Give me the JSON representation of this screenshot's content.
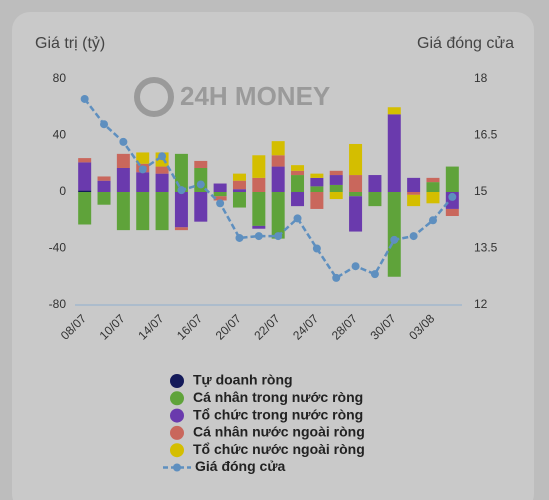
{
  "chart_data": {
    "type": "bar",
    "y_label": "Giá trị (tỷ)",
    "y2_label": "Giá đóng cửa",
    "watermark": "24H MONEY",
    "categories": [
      "08/07",
      null,
      "10/07",
      null,
      "14/07",
      null,
      "16/07",
      null,
      "20/07",
      null,
      "22/07",
      null,
      "24/07",
      null,
      "28/07",
      null,
      "30/07",
      null,
      "03/08",
      null
    ],
    "ylim": [
      -80,
      80
    ],
    "yticks": [
      80,
      40,
      0,
      -40,
      -80
    ],
    "y2lim": [
      12,
      18
    ],
    "y2ticks": [
      18,
      16.5,
      15,
      13.5,
      12
    ],
    "series": [
      {
        "name": "Tự doanh ròng",
        "color": "#141a5a",
        "values": [
          1,
          0,
          0,
          0,
          0,
          0,
          0,
          0,
          0,
          0,
          0,
          0,
          0,
          0,
          0,
          0,
          0,
          0,
          0,
          0
        ]
      },
      {
        "name": "Cá nhân trong nước ròng",
        "color": "#5fa33a",
        "values": [
          -23,
          -9,
          -27,
          -27,
          -27,
          27,
          17,
          -3,
          -11,
          -24,
          -33,
          12,
          4,
          5,
          -3,
          -10,
          -60,
          0,
          7,
          18
        ]
      },
      {
        "name": "Tổ chức trong nước ròng",
        "color": "#6a3aad",
        "values": [
          20,
          8,
          17,
          14,
          13,
          -25,
          -21,
          6,
          2,
          -2,
          18,
          -10,
          6,
          7,
          -25,
          12,
          55,
          10,
          0,
          -12
        ]
      },
      {
        "name": "Cá nhân nước ngoài ròng",
        "color": "#c9675c",
        "values": [
          3,
          3,
          10,
          6,
          5,
          -2,
          5,
          -3,
          6,
          10,
          8,
          3,
          -12,
          3,
          12,
          0,
          0,
          -2,
          3,
          -5
        ]
      },
      {
        "name": "Tổ chức nước ngoài ròng",
        "color": "#d4be00",
        "values": [
          0,
          0,
          0,
          8,
          10,
          0,
          0,
          0,
          5,
          16,
          10,
          4,
          3,
          -5,
          22,
          0,
          5,
          -8,
          -8,
          0
        ]
      },
      {
        "name": "Giá đóng cửa",
        "type": "line",
        "axis": "y2",
        "color": "#5e8fbf",
        "values": [
          17.47,
          16.8,
          16.33,
          15.6,
          15.95,
          15.05,
          15.2,
          14.7,
          13.78,
          13.83,
          13.83,
          14.3,
          13.5,
          12.72,
          13.03,
          12.82,
          13.73,
          13.83,
          14.25,
          14.87
        ]
      }
    ]
  }
}
